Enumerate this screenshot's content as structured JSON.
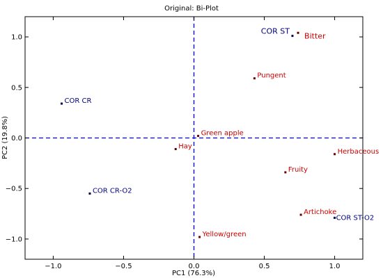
{
  "chart_data": {
    "type": "scatter",
    "title": "Original: Bi-Plot",
    "xlabel": "PC1 (76.3%)",
    "ylabel": "PC2 (19.8%)",
    "xlim": [
      -1.2,
      1.2
    ],
    "ylim": [
      -1.2,
      1.2
    ],
    "xticks": [
      -1.0,
      -0.5,
      0.0,
      0.5,
      1.0
    ],
    "xtick_labels": [
      "−1.0",
      "−0.5",
      "0.0",
      "0.5",
      "1.0"
    ],
    "yticks": [
      1.0,
      0.5,
      0.0,
      -0.5,
      -1.0
    ],
    "ytick_labels": [
      "1.0",
      "0.5",
      "0.0",
      "−0.5",
      "−1.0"
    ],
    "grid": false,
    "reference_lines": [
      {
        "orientation": "vertical",
        "value": 0.0,
        "style": "dashed"
      },
      {
        "orientation": "horizontal",
        "value": 0.0,
        "style": "dashed"
      }
    ],
    "series": [
      {
        "color": "#000080",
        "points": [
          {
            "label": "COR ST",
            "x": 0.7,
            "y": 1.01
          },
          {
            "label": "COR CR",
            "x": -0.94,
            "y": 0.34
          },
          {
            "label": "COR CR-O2",
            "x": -0.74,
            "y": -0.55
          },
          {
            "label": "COR ST-O2",
            "x": 1.0,
            "y": -0.79
          }
        ]
      },
      {
        "color": "#cc0000",
        "points": [
          {
            "label": "Bitter",
            "x": 0.74,
            "y": 1.04
          },
          {
            "label": "Pungent",
            "x": 0.43,
            "y": 0.59
          },
          {
            "label": "Green apple",
            "x": 0.03,
            "y": 0.02
          },
          {
            "label": "Hay",
            "x": -0.13,
            "y": -0.11
          },
          {
            "label": "Herbaceous",
            "x": 1.0,
            "y": -0.16
          },
          {
            "label": "Fruity",
            "x": 0.65,
            "y": -0.34
          },
          {
            "label": "Artichoke",
            "x": 0.76,
            "y": -0.76
          },
          {
            "label": "Yellow/green",
            "x": 0.04,
            "y": -0.98
          }
        ]
      }
    ]
  }
}
